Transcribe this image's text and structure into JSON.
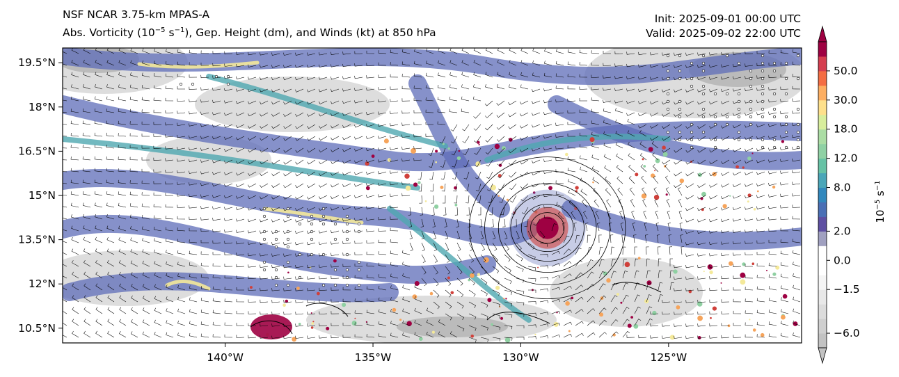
{
  "title": {
    "model": "NSF NCAR 3.75-km MPAS-A",
    "fields_pre": "Abs. Vorticity (10",
    "fields_exp1": "−5",
    "fields_mid": " s",
    "fields_exp2": "−1",
    "fields_post": "), Gep. Height (dm), and Winds (kt) at 850 hPa",
    "init": "Init: 2025-09-01 00:00 UTC",
    "valid": "Valid: 2025-09-02 22:00 UTC"
  },
  "map": {
    "lon_range": [
      -145.5,
      -120.5
    ],
    "lat_range": [
      10.0,
      20.0
    ],
    "x_ticks": [
      {
        "lon": -140,
        "label": "140°W"
      },
      {
        "lon": -135,
        "label": "135°W"
      },
      {
        "lon": -130,
        "label": "130°W"
      },
      {
        "lon": -125,
        "label": "125°W"
      }
    ],
    "y_ticks": [
      {
        "lat": 19.5,
        "label": "19.5°N"
      },
      {
        "lat": 18.0,
        "label": "18°N"
      },
      {
        "lat": 16.5,
        "label": "16.5°N"
      },
      {
        "lat": 15.0,
        "label": "15°N"
      },
      {
        "lat": 13.5,
        "label": "13.5°N"
      },
      {
        "lat": 12.0,
        "label": "12°N"
      },
      {
        "lat": 10.5,
        "label": "10.5°N"
      }
    ],
    "cyclone_center": {
      "lon": -129.1,
      "lat": 13.9
    },
    "colors": {
      "background": "#ffffff",
      "light_gray": "#d9d9d9",
      "mid_gray": "#b3b3b3",
      "vort_blue": "#5e6cb8",
      "vort_teal": "#4fa8b0",
      "vort_green": "#8fd0a2",
      "vort_yellow": "#f4e99a",
      "vort_orange": "#f6a45b",
      "vort_red": "#d0403a",
      "vort_maroon": "#9e0142"
    }
  },
  "colorbar": {
    "label_base": "10",
    "label_exp1": "−5",
    "label_mid": " s",
    "label_exp2": "−1",
    "levels": [
      -6.0,
      -4.5,
      -3.0,
      -1.5,
      -0.5,
      0.0,
      1.0,
      2.0,
      4.0,
      6.0,
      8.0,
      10.0,
      12.0,
      15.0,
      18.0,
      24.0,
      30.0,
      40.0,
      50.0,
      60.0
    ],
    "colors": [
      "#c2c2c2",
      "#cfcfcf",
      "#dcdcdc",
      "#e8e8e8",
      "#f5f5f5",
      "#ffffff",
      "#ffffff",
      "#a0a0c0",
      "#5e4fa2",
      "#4a6fb5",
      "#3288bd",
      "#4aa6b8",
      "#66c2a5",
      "#8fd1a4",
      "#abdda4",
      "#d8ee9c",
      "#fee08b",
      "#fdae61",
      "#f46d43",
      "#d53e4f",
      "#9e0142"
    ],
    "tick_labels": [
      {
        "value": 50.0,
        "label": "50.0"
      },
      {
        "value": 30.0,
        "label": "30.0"
      },
      {
        "value": 18.0,
        "label": "18.0"
      },
      {
        "value": 12.0,
        "label": "12.0"
      },
      {
        "value": 8.0,
        "label": "8.0"
      },
      {
        "value": 2.0,
        "label": "2.0"
      },
      {
        "value": 0.0,
        "label": "0.0"
      },
      {
        "value": -1.5,
        "label": "−1.5"
      },
      {
        "value": -6.0,
        "label": "−6.0"
      }
    ]
  }
}
